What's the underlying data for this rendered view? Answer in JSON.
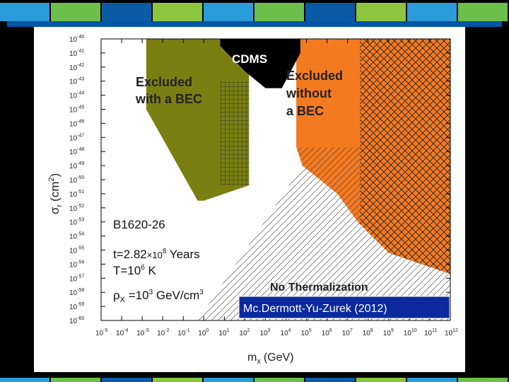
{
  "chart_data": {
    "type": "area",
    "xlabel": "m",
    "xlabel_sub": "x",
    "xlabel_unit": "(GeV)",
    "ylabel": "σ",
    "ylabel_sub": "r",
    "ylabel_unit": "(cm",
    "ylabel_unit_sup": "2",
    "ylabel_unit_close": ")",
    "x_scale": "log10",
    "y_scale": "log10",
    "xlim_exp": [
      -5,
      12
    ],
    "ylim_exp": [
      -60,
      -40
    ],
    "x_tick_exponents": [
      -5,
      -4,
      -3,
      -2,
      -1,
      0,
      1,
      2,
      3,
      4,
      5,
      6,
      7,
      8,
      9,
      10,
      11,
      12
    ],
    "y_tick_exponents": [
      -40,
      -41,
      -42,
      -43,
      -44,
      -45,
      -46,
      -47,
      -48,
      -49,
      -50,
      -51,
      -52,
      -53,
      -54,
      -55,
      -56,
      -57,
      -58,
      -59,
      -60
    ],
    "tick_base": "10",
    "regions": [
      {
        "name": "Excluded with a BEC",
        "label_lines": [
          "Excluded",
          "with a BEC"
        ],
        "color": "#7b7f12",
        "boundary_log": [
          [
            -1,
            -40
          ],
          [
            2.2,
            -40
          ],
          [
            2.2,
            -50.4
          ],
          [
            0,
            -51.5
          ],
          [
            -0.3,
            -51.5
          ],
          [
            -2.8,
            -45
          ],
          [
            -2.8,
            -40
          ]
        ]
      },
      {
        "name": "CDMS",
        "label": "CDMS",
        "color": "#000000",
        "boundary_log": [
          [
            0.8,
            -40
          ],
          [
            4.7,
            -40
          ],
          [
            4.7,
            -41
          ],
          [
            3.8,
            -43.5
          ],
          [
            3,
            -43.5
          ],
          [
            2,
            -42.3
          ],
          [
            0.8,
            -40.5
          ]
        ]
      },
      {
        "name": "Excluded without a BEC",
        "label_lines": [
          "Excluded",
          "without",
          "a BEC"
        ],
        "color": "#f47a20",
        "boundary_log": [
          [
            4.7,
            -40
          ],
          [
            12,
            -40
          ],
          [
            12,
            -56.7
          ],
          [
            9,
            -55.2
          ],
          [
            7.5,
            -53
          ],
          [
            6.5,
            -51
          ],
          [
            4.8,
            -49
          ],
          [
            4.5,
            -47.7
          ],
          [
            4.5,
            -41
          ]
        ]
      },
      {
        "name": "No Thermalization",
        "label": "No Thermalization",
        "color": "#ffffff",
        "boundary_log": [
          [
            -0.3,
            -60
          ],
          [
            12,
            -60
          ],
          [
            12,
            -56.7
          ],
          [
            9,
            -55.2
          ],
          [
            7.5,
            -53
          ],
          [
            6.5,
            -51
          ],
          [
            4.8,
            -49
          ]
        ]
      }
    ],
    "annotations": {
      "object": "B1620-26",
      "t_prefix": "t=2.82",
      "t_mult": "×10",
      "t_exp": "8",
      "t_suffix": " Years",
      "T_prefix": "T=10",
      "T_exp": "6",
      "T_suffix": " K",
      "rho_prefix": "ρ",
      "rho_sub": "X",
      "rho_eq": " =10",
      "rho_exp": "3",
      "rho_suffix": " GeV/cm",
      "rho_unit_exp": "3"
    },
    "caption": "Mc.Dermott-Yu-Zurek (2012)"
  },
  "theme": {
    "deco_colors": [
      "#2b9bd9",
      "#6dbf4b",
      "#0b5aa6",
      "#8cc63f"
    ]
  }
}
